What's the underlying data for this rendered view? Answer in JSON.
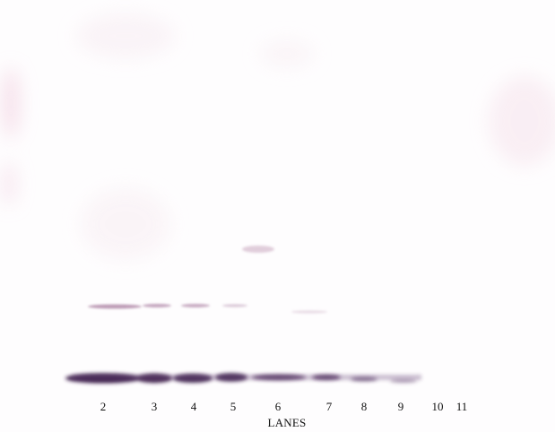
{
  "figure": {
    "background_color": "#fefdfe",
    "band_color": "#3b1c4a",
    "faint_band_color": "#b088a8",
    "stain_color": "#f1d9e6"
  },
  "lanes": {
    "title": "LANES",
    "labels": [
      "2",
      "3",
      "4",
      "5",
      "6",
      "7",
      "8",
      "9",
      "10",
      "11"
    ]
  }
}
